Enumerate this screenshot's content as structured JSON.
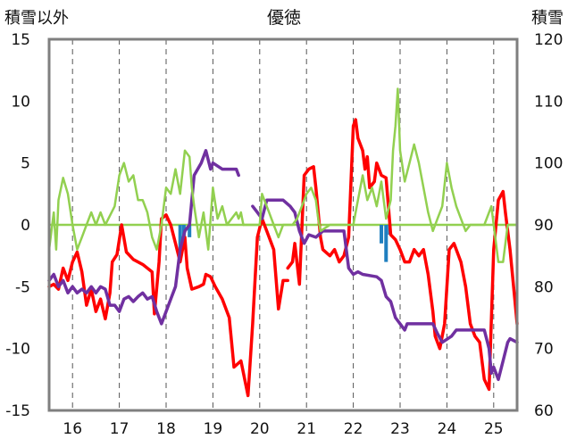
{
  "chart_data": {
    "type": "line",
    "title": "優徳",
    "ylabel_left": "積雪以外",
    "ylabel_right": "積雪",
    "ylim_left": [
      -15,
      15
    ],
    "ylim_right": [
      60,
      120
    ],
    "y_ticks_left": [
      "15",
      "10",
      "5",
      "0",
      "-5",
      "-10",
      "-15"
    ],
    "y_ticks_right": [
      "120",
      "110",
      "100",
      "90",
      "80",
      "70",
      "60"
    ],
    "x_ticks": [
      "16",
      "17",
      "18",
      "19",
      "20",
      "21",
      "22",
      "23",
      "24",
      "25"
    ],
    "xlim": [
      15.5,
      25.5
    ],
    "grid": "vertical dashed",
    "series": [
      {
        "color": "#ff0000",
        "axis": "left",
        "style": "line",
        "points": [
          [
            15.5,
            -5
          ],
          [
            15.6,
            -4.8
          ],
          [
            15.7,
            -5.2
          ],
          [
            15.8,
            -3.5
          ],
          [
            15.9,
            -4.5
          ],
          [
            16.0,
            -3
          ],
          [
            16.1,
            -2.2
          ],
          [
            16.2,
            -3.8
          ],
          [
            16.3,
            -6.5
          ],
          [
            16.4,
            -5.2
          ],
          [
            16.5,
            -7
          ],
          [
            16.6,
            -6
          ],
          [
            16.7,
            -7.6
          ],
          [
            16.8,
            -5.5
          ],
          [
            16.85,
            -3
          ],
          [
            16.95,
            -2.4
          ],
          [
            17.05,
            0
          ],
          [
            17.15,
            -2.2
          ],
          [
            17.3,
            -2.8
          ],
          [
            17.5,
            -3.2
          ],
          [
            17.7,
            -3.8
          ],
          [
            17.75,
            -7.2
          ],
          [
            17.85,
            -3
          ],
          [
            17.9,
            0.5
          ],
          [
            18.0,
            0.8
          ],
          [
            18.1,
            0
          ],
          [
            18.2,
            -1.5
          ],
          [
            18.3,
            -3
          ],
          [
            18.4,
            -1
          ],
          [
            18.45,
            -3.5
          ],
          [
            18.55,
            -5.2
          ],
          [
            18.7,
            -5
          ],
          [
            18.8,
            -4.8
          ],
          [
            18.85,
            -4
          ],
          [
            18.95,
            -4.2
          ],
          [
            19.05,
            -5
          ],
          [
            19.2,
            -6
          ],
          [
            19.35,
            -7.5
          ],
          [
            19.45,
            -11.5
          ],
          [
            19.6,
            -11
          ],
          [
            19.75,
            -13.8
          ],
          [
            19.85,
            -8
          ],
          [
            19.95,
            -1
          ],
          [
            20.05,
            0.5
          ],
          [
            20.15,
            -0.5
          ],
          [
            20.3,
            -2
          ],
          [
            20.4,
            -6.8
          ],
          [
            20.5,
            -4.5
          ],
          [
            20.6,
            -4.5
          ]
        ]
      },
      {
        "color": "#ff0000",
        "axis": "left",
        "style": "line",
        "points": [
          [
            20.6,
            -3.5
          ],
          [
            20.7,
            -3
          ],
          [
            20.75,
            -1.5
          ],
          [
            20.85,
            -4.8
          ],
          [
            20.95,
            4
          ],
          [
            21.05,
            4.5
          ],
          [
            21.15,
            4.7
          ],
          [
            21.2,
            3
          ],
          [
            21.3,
            -1
          ],
          [
            21.35,
            -2
          ],
          [
            21.5,
            -2.5
          ],
          [
            21.6,
            -2
          ],
          [
            21.7,
            -3
          ],
          [
            21.8,
            -2.5
          ],
          [
            21.9,
            -1
          ],
          [
            22.0,
            8
          ],
          [
            22.05,
            8.5
          ],
          [
            22.1,
            7
          ],
          [
            22.2,
            6
          ],
          [
            22.25,
            4.5
          ],
          [
            22.3,
            5.5
          ],
          [
            22.35,
            3
          ],
          [
            22.45,
            3.5
          ],
          [
            22.5,
            5
          ],
          [
            22.6,
            4
          ],
          [
            22.7,
            3.8
          ],
          [
            22.8,
            -0.8
          ],
          [
            22.9,
            -1.2
          ],
          [
            23.0,
            -2
          ],
          [
            23.1,
            -3
          ],
          [
            23.2,
            -3
          ],
          [
            23.3,
            -2
          ],
          [
            23.4,
            -2.5
          ],
          [
            23.5,
            -2
          ],
          [
            23.6,
            -4
          ],
          [
            23.7,
            -7
          ],
          [
            23.75,
            -9
          ],
          [
            23.85,
            -10
          ],
          [
            23.95,
            -8
          ],
          [
            24.05,
            -2
          ],
          [
            24.15,
            -1.5
          ],
          [
            24.3,
            -3
          ],
          [
            24.4,
            -5
          ],
          [
            24.5,
            -8
          ],
          [
            24.6,
            -9
          ],
          [
            24.7,
            -9.5
          ],
          [
            24.8,
            -12.5
          ],
          [
            24.9,
            -13.3
          ],
          [
            25.0,
            -2
          ],
          [
            25.1,
            2
          ],
          [
            25.2,
            2.7
          ],
          [
            25.25,
            1
          ],
          [
            25.35,
            -2
          ],
          [
            25.45,
            -6
          ],
          [
            25.5,
            -8
          ]
        ]
      },
      {
        "color": "#7030a0",
        "axis": "left",
        "style": "line",
        "points": [
          [
            15.5,
            -4.5
          ],
          [
            15.6,
            -4
          ],
          [
            15.7,
            -5
          ],
          [
            15.8,
            -4.5
          ],
          [
            15.9,
            -5.5
          ],
          [
            16.0,
            -5
          ],
          [
            16.1,
            -5.5
          ],
          [
            16.2,
            -5.2
          ],
          [
            16.3,
            -5.5
          ],
          [
            16.4,
            -5
          ],
          [
            16.5,
            -5.5
          ],
          [
            16.6,
            -5
          ],
          [
            16.7,
            -5.2
          ],
          [
            16.8,
            -6.5
          ],
          [
            16.9,
            -6.5
          ],
          [
            17.0,
            -7
          ],
          [
            17.1,
            -6
          ],
          [
            17.2,
            -5.8
          ],
          [
            17.3,
            -6.2
          ],
          [
            17.4,
            -5.8
          ],
          [
            17.5,
            -5.5
          ],
          [
            17.6,
            -6
          ],
          [
            17.7,
            -5.8
          ],
          [
            17.8,
            -7
          ],
          [
            17.9,
            -8
          ],
          [
            18.0,
            -7
          ],
          [
            18.1,
            -6
          ],
          [
            18.2,
            -5
          ],
          [
            18.3,
            -2
          ],
          [
            18.4,
            -0.5
          ],
          [
            18.5,
            0
          ],
          [
            18.6,
            4
          ],
          [
            18.75,
            5
          ],
          [
            18.85,
            6
          ],
          [
            18.95,
            4.5
          ],
          [
            19.0,
            5
          ],
          [
            19.2,
            4.5
          ],
          [
            19.5,
            4.5
          ],
          [
            19.55,
            4
          ]
        ]
      },
      {
        "color": "#7030a0",
        "axis": "left",
        "style": "line",
        "points": [
          [
            19.85,
            1.5
          ],
          [
            19.95,
            1
          ],
          [
            20.05,
            0.5
          ],
          [
            20.15,
            2
          ],
          [
            20.5,
            2
          ],
          [
            20.65,
            1.5
          ],
          [
            20.75,
            1
          ],
          [
            20.85,
            -0.5
          ],
          [
            20.95,
            -1.5
          ],
          [
            21.05,
            -0.8
          ],
          [
            21.2,
            -1
          ],
          [
            21.35,
            -0.5
          ],
          [
            21.8,
            -0.5
          ],
          [
            21.9,
            -3.5
          ],
          [
            22.0,
            -4
          ],
          [
            22.1,
            -3.8
          ],
          [
            22.2,
            -4
          ],
          [
            22.5,
            -4.2
          ],
          [
            22.6,
            -4.5
          ],
          [
            22.7,
            -5.8
          ],
          [
            22.8,
            -6.2
          ],
          [
            22.9,
            -7.5
          ],
          [
            23.0,
            -8
          ],
          [
            23.1,
            -8.5
          ],
          [
            23.15,
            -8
          ],
          [
            23.7,
            -8
          ],
          [
            23.8,
            -8.8
          ],
          [
            23.9,
            -9.5
          ],
          [
            24.1,
            -9
          ],
          [
            24.2,
            -8.5
          ],
          [
            24.8,
            -8.5
          ],
          [
            24.9,
            -10
          ],
          [
            24.95,
            -12
          ],
          [
            25.0,
            -11.5
          ],
          [
            25.1,
            -12.5
          ],
          [
            25.2,
            -11
          ],
          [
            25.3,
            -9.5
          ],
          [
            25.35,
            -9.2
          ],
          [
            25.5,
            -9.5
          ]
        ]
      },
      {
        "color": "#92d050",
        "axis": "left",
        "style": "line",
        "points": [
          [
            15.5,
            -2
          ],
          [
            15.6,
            1
          ],
          [
            15.65,
            -2
          ],
          [
            15.7,
            2
          ],
          [
            15.8,
            3.8
          ],
          [
            15.9,
            2.5
          ],
          [
            16.0,
            0
          ],
          [
            16.05,
            -1
          ],
          [
            16.1,
            -2
          ],
          [
            16.2,
            -1
          ],
          [
            16.3,
            0
          ],
          [
            16.4,
            1
          ],
          [
            16.5,
            0
          ],
          [
            16.6,
            1
          ],
          [
            16.7,
            0
          ],
          [
            16.9,
            1.5
          ],
          [
            17.0,
            4
          ],
          [
            17.1,
            5
          ],
          [
            17.2,
            3.5
          ],
          [
            17.3,
            4
          ],
          [
            17.4,
            2
          ],
          [
            17.5,
            2
          ],
          [
            17.6,
            1
          ],
          [
            17.7,
            -1
          ],
          [
            17.8,
            -2
          ],
          [
            17.9,
            0
          ],
          [
            18.0,
            3
          ],
          [
            18.1,
            2.5
          ],
          [
            18.2,
            4.5
          ],
          [
            18.3,
            2.5
          ],
          [
            18.4,
            6
          ],
          [
            18.5,
            5.5
          ],
          [
            18.55,
            3
          ],
          [
            18.6,
            1.5
          ],
          [
            18.7,
            -1
          ],
          [
            18.8,
            1
          ],
          [
            18.9,
            -2
          ],
          [
            19.0,
            3
          ],
          [
            19.1,
            0.5
          ],
          [
            19.2,
            1.5
          ],
          [
            19.3,
            0
          ],
          [
            19.5,
            1
          ],
          [
            19.55,
            0.5
          ],
          [
            19.6,
            1
          ],
          [
            19.65,
            0
          ]
        ]
      },
      {
        "color": "#92d050",
        "axis": "left",
        "style": "line",
        "points": [
          [
            19.65,
            0
          ],
          [
            20.0,
            0
          ],
          [
            20.05,
            2.5
          ],
          [
            20.1,
            2
          ],
          [
            20.2,
            1
          ],
          [
            20.3,
            0
          ],
          [
            20.4,
            -1
          ],
          [
            20.5,
            0
          ],
          [
            20.7,
            0
          ],
          [
            20.8,
            0.5
          ],
          [
            20.9,
            1.5
          ],
          [
            21.0,
            2.5
          ],
          [
            21.1,
            3
          ],
          [
            21.2,
            2
          ],
          [
            21.25,
            0.5
          ],
          [
            21.3,
            -0.5
          ],
          [
            21.5,
            0
          ],
          [
            22.0,
            0
          ],
          [
            22.1,
            2
          ],
          [
            22.2,
            4
          ],
          [
            22.3,
            2
          ],
          [
            22.4,
            3
          ],
          [
            22.5,
            1.5
          ],
          [
            22.6,
            3.5
          ],
          [
            22.7,
            0.5
          ],
          [
            22.8,
            2
          ],
          [
            22.85,
            6
          ],
          [
            22.9,
            8
          ],
          [
            22.95,
            11
          ],
          [
            23.0,
            6
          ],
          [
            23.1,
            3.5
          ],
          [
            23.2,
            5
          ],
          [
            23.3,
            6.5
          ],
          [
            23.4,
            5
          ],
          [
            23.5,
            3
          ],
          [
            23.6,
            1
          ],
          [
            23.7,
            -0.5
          ],
          [
            23.8,
            0.5
          ],
          [
            23.9,
            1.5
          ],
          [
            24.0,
            5
          ],
          [
            24.1,
            3
          ],
          [
            24.2,
            1.5
          ],
          [
            24.3,
            0.5
          ],
          [
            24.4,
            -0.5
          ],
          [
            24.5,
            0
          ],
          [
            24.8,
            0
          ],
          [
            24.95,
            1.5
          ],
          [
            25.0,
            0
          ],
          [
            25.1,
            -3
          ],
          [
            25.2,
            -3
          ],
          [
            25.3,
            0
          ],
          [
            25.4,
            0
          ],
          [
            25.5,
            0
          ]
        ]
      },
      {
        "color": "#1f7fbf",
        "axis": "left",
        "style": "bar",
        "points": [
          [
            18.3,
            -2
          ],
          [
            18.38,
            -1.2
          ],
          [
            18.5,
            -1
          ],
          [
            22.6,
            -1.5
          ],
          [
            22.7,
            -3
          ],
          [
            22.78,
            -0.8
          ]
        ]
      }
    ]
  }
}
